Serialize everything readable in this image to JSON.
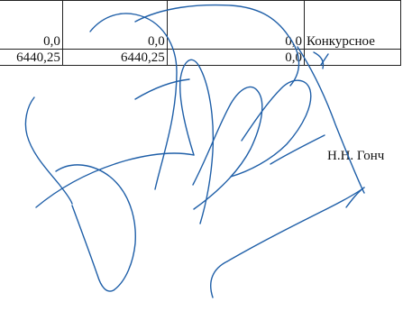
{
  "table": {
    "rows": [
      [
        "0,0",
        "0,0",
        "0,0",
        "Конкурсное"
      ],
      [
        "6440,25",
        "6440,25",
        "0,0",
        ""
      ]
    ]
  },
  "signer_name": "Н.Н. Гонч",
  "colors": {
    "ink": "#1f5fa8",
    "text": "#111111",
    "border": "#222222"
  }
}
